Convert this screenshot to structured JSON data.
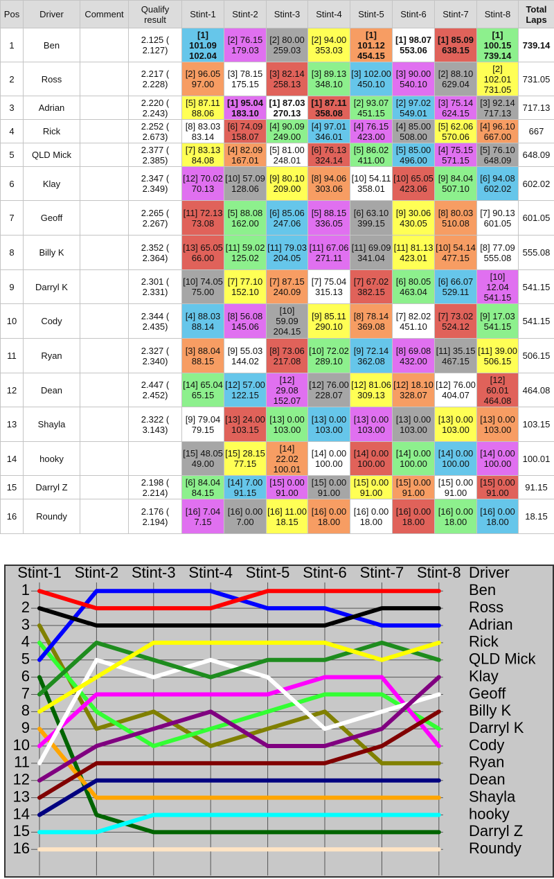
{
  "table": {
    "columns": [
      "Pos",
      "Driver",
      "Comment",
      "Qualify result",
      "Stint-1",
      "Stint-2",
      "Stint-3",
      "Stint-4",
      "Stint-5",
      "Stint-6",
      "Stint-7",
      "Stint-8",
      "Total Laps"
    ],
    "rows": [
      {
        "pos": 1,
        "driver": "Ben",
        "qualify": "2.125 ( 2.127)",
        "stints": [
          "[1] 101.09 102.04",
          "[2] 76.15 179.03",
          "[2] 80.00 259.03",
          "[2] 94.00 353.03",
          "[1] 101.12 454.15",
          "[1] 98.07 553.06",
          "[1] 85.09 638.15",
          "[1] 100.15 739.14"
        ],
        "stint_colors": [
          "#66c6ea",
          "#e070f0",
          "#a6a6a6",
          "#ffff55",
          "#f79d63",
          "#ffffff",
          "#e0625a",
          "#8df08d"
        ],
        "stint_bold": [
          true,
          false,
          false,
          false,
          true,
          true,
          true,
          true
        ],
        "total": 739.14,
        "total_bold": true
      },
      {
        "pos": 2,
        "driver": "Ross",
        "qualify": "2.217 ( 2.228)",
        "stints": [
          "[2] 96.05 97.00",
          "[3] 78.15 175.15",
          "[3] 82.14 258.13",
          "[3] 89.13 348.10",
          "[3] 102.00 450.10",
          "[3] 90.00 540.10",
          "[2] 88.10 629.04",
          "[2] 102.01 731.05"
        ],
        "stint_colors": [
          "#f79d63",
          "#ffffff",
          "#e0625a",
          "#8df08d",
          "#66c6ea",
          "#e070f0",
          "#a6a6a6",
          "#ffff55"
        ],
        "total": 731.05
      },
      {
        "pos": 3,
        "driver": "Adrian",
        "qualify": "2.220 ( 2.243)",
        "stints": [
          "[5] 87.11 88.06",
          "[1] 95.04 183.10",
          "[1] 87.03 270.13",
          "[1] 87.11 358.08",
          "[2] 93.07 451.15",
          "[2] 97.02 549.01",
          "[3] 75.14 624.15",
          "[3] 92.14 717.13"
        ],
        "stint_colors": [
          "#ffff55",
          "#e070f0",
          "#ffffff",
          "#e0625a",
          "#8df08d",
          "#66c6ea",
          "#e070f0",
          "#a6a6a6"
        ],
        "stint_bold": [
          false,
          true,
          true,
          true,
          false,
          false,
          false,
          false
        ],
        "total": 717.13
      },
      {
        "pos": 4,
        "driver": "Rick",
        "qualify": "2.252 ( 2.673)",
        "stints": [
          "[8] 83.03 83.14",
          "[6] 74.09 158.07",
          "[4] 90.09 249.00",
          "[4] 97.01 346.01",
          "[4] 76.15 423.00",
          "[4] 85.00 508.00",
          "[5] 62.06 570.06",
          "[4] 96.10 667.00"
        ],
        "stint_colors": [
          "#ffffff",
          "#e0625a",
          "#8df08d",
          "#66c6ea",
          "#e070f0",
          "#a6a6a6",
          "#ffff55",
          "#f79d63"
        ],
        "total": 667
      },
      {
        "pos": 5,
        "driver": "QLD Mick",
        "qualify": "2.377 ( 2.385)",
        "stints": [
          "[7] 83.13 84.08",
          "[4] 82.09 167.01",
          "[5] 81.00 248.01",
          "[6] 76.13 324.14",
          "[5] 86.02 411.00",
          "[5] 85.00 496.00",
          "[4] 75.15 571.15",
          "[5] 76.10 648.09"
        ],
        "stint_colors": [
          "#ffff55",
          "#f79d63",
          "#ffffff",
          "#e0625a",
          "#8df08d",
          "#66c6ea",
          "#e070f0",
          "#a6a6a6"
        ],
        "total": 648.09
      },
      {
        "pos": 6,
        "driver": "Klay",
        "qualify": "2.347 ( 2.349)",
        "stints": [
          "[12] 70.02 70.13",
          "[10] 57.09 128.06",
          "[9] 80.10 209.00",
          "[8] 94.06 303.06",
          "[10] 54.11 358.01",
          "[10] 65.05 423.06",
          "[9] 84.04 507.10",
          "[6] 94.08 602.02"
        ],
        "stint_colors": [
          "#e070f0",
          "#a6a6a6",
          "#ffff55",
          "#f79d63",
          "#ffffff",
          "#e0625a",
          "#8df08d",
          "#66c6ea"
        ],
        "total": 602.02
      },
      {
        "pos": 7,
        "driver": "Geoff",
        "qualify": "2.265 ( 2.267)",
        "stints": [
          "[11] 72.13 73.08",
          "[5] 88.08 162.00",
          "[6] 85.06 247.06",
          "[5] 88.15 336.05",
          "[6] 63.10 399.15",
          "[9] 30.06 430.05",
          "[8] 80.03 510.08",
          "[7] 90.13 601.05"
        ],
        "stint_colors": [
          "#e0625a",
          "#8df08d",
          "#66c6ea",
          "#e070f0",
          "#a6a6a6",
          "#ffff55",
          "#f79d63",
          "#ffffff"
        ],
        "total": 601.05
      },
      {
        "pos": 8,
        "driver": "Billy K",
        "qualify": "2.352 ( 2.364)",
        "stints": [
          "[13] 65.05 66.00",
          "[11] 59.02 125.02",
          "[11] 79.03 204.05",
          "[11] 67.06 271.11",
          "[11] 69.09 341.04",
          "[11] 81.13 423.01",
          "[10] 54.14 477.15",
          "[8] 77.09 555.08"
        ],
        "stint_colors": [
          "#e0625a",
          "#8df08d",
          "#66c6ea",
          "#e070f0",
          "#a6a6a6",
          "#ffff55",
          "#f79d63",
          "#ffffff"
        ],
        "total": 555.08
      },
      {
        "pos": 9,
        "driver": "Darryl K",
        "qualify": "2.301 ( 2.331)",
        "stints": [
          "[10] 74.05 75.00",
          "[7] 77.10 152.10",
          "[7] 87.15 240.09",
          "[7] 75.04 315.13",
          "[7] 67.02 382.15",
          "[6] 80.05 463.04",
          "[6] 66.07 529.11",
          "[10] 12.04 541.15"
        ],
        "stint_colors": [
          "#a6a6a6",
          "#ffff55",
          "#f79d63",
          "#ffffff",
          "#e0625a",
          "#8df08d",
          "#66c6ea",
          "#e070f0"
        ],
        "total": 541.15
      },
      {
        "pos": 10,
        "driver": "Cody",
        "qualify": "2.344 ( 2.435)",
        "stints": [
          "[4] 88.03 88.14",
          "[8] 56.08 145.06",
          "[10] 59.09 204.15",
          "[9] 85.11 290.10",
          "[8] 78.14 369.08",
          "[7] 82.02 451.10",
          "[7] 73.02 524.12",
          "[9] 17.03 541.15"
        ],
        "stint_colors": [
          "#66c6ea",
          "#e070f0",
          "#a6a6a6",
          "#ffff55",
          "#f79d63",
          "#ffffff",
          "#e0625a",
          "#8df08d"
        ],
        "total": 541.15
      },
      {
        "pos": 11,
        "driver": "Ryan",
        "qualify": "2.327 ( 2.340)",
        "stints": [
          "[3] 88.04 88.15",
          "[9] 55.03 144.02",
          "[8] 73.06 217.08",
          "[10] 72.02 289.10",
          "[9] 72.14 362.08",
          "[8] 69.08 432.00",
          "[11] 35.15 467.15",
          "[11] 39.00 506.15"
        ],
        "stint_colors": [
          "#f79d63",
          "#ffffff",
          "#e0625a",
          "#8df08d",
          "#66c6ea",
          "#e070f0",
          "#a6a6a6",
          "#ffff55"
        ],
        "total": 506.15
      },
      {
        "pos": 12,
        "driver": "Dean",
        "qualify": "2.447 ( 2.452)",
        "stints": [
          "[14] 65.04 65.15",
          "[12] 57.00 122.15",
          "[12] 29.08 152.07",
          "[12] 76.00 228.07",
          "[12] 81.06 309.13",
          "[12] 18.10 328.07",
          "[12] 76.00 404.07",
          "[12] 60.01 464.08"
        ],
        "stint_colors": [
          "#8df08d",
          "#66c6ea",
          "#e070f0",
          "#a6a6a6",
          "#ffff55",
          "#f79d63",
          "#ffffff",
          "#e0625a"
        ],
        "total": 464.08
      },
      {
        "pos": 13,
        "driver": "Shayla",
        "qualify": "2.322 ( 3.143)",
        "stints": [
          "[9] 79.04 79.15",
          "[13] 24.00 103.15",
          "[13] 0.00 103.00",
          "[13] 0.00 103.00",
          "[13] 0.00 103.00",
          "[13] 0.00 103.00",
          "[13] 0.00 103.00",
          "[13] 0.00 103.00"
        ],
        "stint_colors": [
          "#ffffff",
          "#e0625a",
          "#8df08d",
          "#66c6ea",
          "#e070f0",
          "#a6a6a6",
          "#ffff55",
          "#f79d63"
        ],
        "total": 103.15
      },
      {
        "pos": 14,
        "driver": "hooky",
        "qualify": null,
        "stints": [
          "[15] 48.05 49.00",
          "[15] 28.15 77.15",
          "[14] 22.02 100.01",
          "[14] 0.00 100.00",
          "[14] 0.00 100.00",
          "[14] 0.00 100.00",
          "[14] 0.00 100.00",
          "[14] 0.00 100.00"
        ],
        "stint_colors": [
          "#a6a6a6",
          "#ffff55",
          "#f79d63",
          "#ffffff",
          "#e0625a",
          "#8df08d",
          "#66c6ea",
          "#e070f0"
        ],
        "total": 100.01
      },
      {
        "pos": 15,
        "driver": "Darryl Z",
        "qualify": "2.198 ( 2.214)",
        "stints": [
          "[6] 84.04 84.15",
          "[14] 7.00 91.15",
          "[15] 0.00 91.00",
          "[15] 0.00 91.00",
          "[15] 0.00 91.00",
          "[15] 0.00 91.00",
          "[15] 0.00 91.00",
          "[15] 0.00 91.00"
        ],
        "stint_colors": [
          "#8df08d",
          "#66c6ea",
          "#e070f0",
          "#a6a6a6",
          "#ffff55",
          "#f79d63",
          "#ffffff",
          "#e0625a"
        ],
        "total": 91.15
      },
      {
        "pos": 16,
        "driver": "Roundy",
        "qualify": "2.176 ( 2.194)",
        "stints": [
          "[16] 7.04 7.15",
          "[16] 0.00 7.00",
          "[16] 11.00 18.15",
          "[16] 0.00 18.00",
          "[16] 0.00 18.00",
          "[16] 0.00 18.00",
          "[16] 0.00 18.00",
          "[16] 0.00 18.00"
        ],
        "stint_colors": [
          "#e070f0",
          "#a6a6a6",
          "#ffff55",
          "#f79d63",
          "#ffffff",
          "#e0625a",
          "#8df08d",
          "#66c6ea"
        ],
        "total": 18.15
      }
    ]
  },
  "chart_data": {
    "type": "line",
    "categories": [
      "Stint-1",
      "Stint-2",
      "Stint-3",
      "Stint-4",
      "Stint-5",
      "Stint-6",
      "Stint-7",
      "Stint-8"
    ],
    "legend_title": "Driver",
    "ylim": [
      -0.5,
      17.6
    ],
    "y_inverted": true,
    "yticks": [
      1,
      2,
      3,
      4,
      5,
      6,
      7,
      8,
      9,
      10,
      11,
      12,
      13,
      14,
      15,
      16
    ],
    "grid": true,
    "series": [
      {
        "name": "Ben",
        "color": "#ff0000",
        "values": [
          1,
          2,
          2,
          2,
          1,
          1,
          1,
          1
        ]
      },
      {
        "name": "Ross",
        "color": "#000000",
        "values": [
          2,
          3,
          3,
          3,
          3,
          3,
          2,
          2
        ]
      },
      {
        "name": "Adrian",
        "color": "#0000ff",
        "values": [
          5,
          1,
          1,
          1,
          2,
          2,
          3,
          3
        ]
      },
      {
        "name": "Rick",
        "color": "#ffff00",
        "values": [
          8,
          6,
          4,
          4,
          4,
          4,
          5,
          4
        ]
      },
      {
        "name": "QLD Mick",
        "color": "#1e8c1e",
        "values": [
          7,
          4,
          5,
          6,
          5,
          5,
          4,
          5
        ]
      },
      {
        "name": "Klay",
        "color": "#800080",
        "values": [
          12,
          10,
          9,
          8,
          10,
          10,
          9,
          6
        ]
      },
      {
        "name": "Geoff",
        "color": "#ffffff",
        "values": [
          11,
          5,
          6,
          5,
          6,
          9,
          8,
          7
        ]
      },
      {
        "name": "Billy K",
        "color": "#800000",
        "values": [
          13,
          11,
          11,
          11,
          11,
          11,
          10,
          8
        ]
      },
      {
        "name": "Darryl K",
        "color": "#ff00ff",
        "values": [
          10,
          7,
          7,
          7,
          7,
          6,
          6,
          10
        ]
      },
      {
        "name": "Cody",
        "color": "#33ff33",
        "values": [
          4,
          8,
          10,
          9,
          8,
          7,
          7,
          9
        ]
      },
      {
        "name": "Ryan",
        "color": "#808000",
        "values": [
          3,
          9,
          8,
          10,
          9,
          8,
          11,
          11
        ]
      },
      {
        "name": "Dean",
        "color": "#000080",
        "values": [
          14,
          12,
          12,
          12,
          12,
          12,
          12,
          12
        ]
      },
      {
        "name": "Shayla",
        "color": "#ffa500",
        "values": [
          9,
          13,
          13,
          13,
          13,
          13,
          13,
          13
        ]
      },
      {
        "name": "hooky",
        "color": "#00ffff",
        "values": [
          15,
          15,
          14,
          14,
          14,
          14,
          14,
          14
        ]
      },
      {
        "name": "Darryl Z",
        "color": "#006400",
        "values": [
          6,
          14,
          15,
          15,
          15,
          15,
          15,
          15
        ]
      },
      {
        "name": "Roundy",
        "color": "#ffe4c4",
        "values": [
          16,
          16,
          16,
          16,
          16,
          16,
          16,
          16
        ]
      }
    ]
  }
}
